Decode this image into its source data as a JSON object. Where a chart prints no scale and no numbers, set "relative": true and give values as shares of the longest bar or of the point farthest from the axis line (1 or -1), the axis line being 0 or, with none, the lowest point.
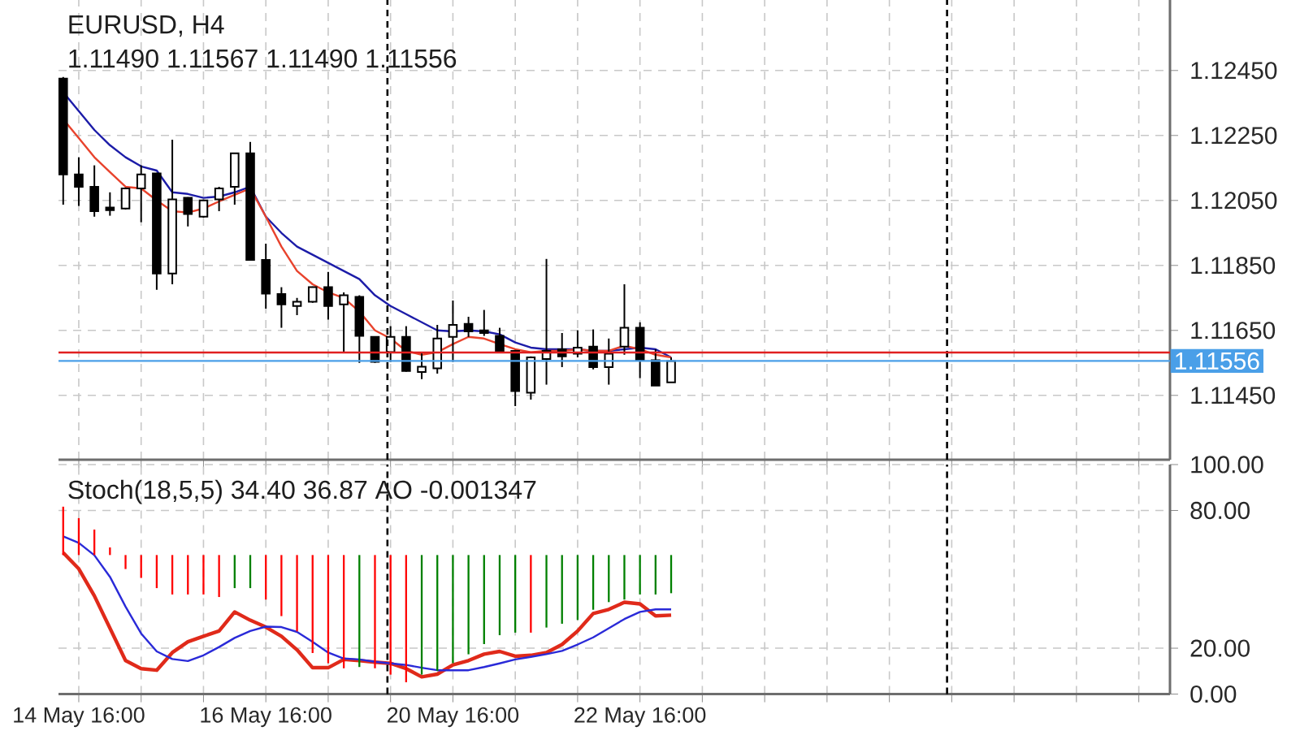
{
  "chart_data": [
    {
      "type": "candlestick",
      "title": "EURUSD, H4",
      "subtitle": "1.11490 1.11567 1.11490 1.11556",
      "categories": [
        null,
        null,
        null,
        null,
        null,
        null,
        null,
        null,
        null,
        null,
        null,
        null,
        null,
        null,
        null,
        null,
        null,
        null,
        null,
        null,
        null,
        null,
        null,
        null,
        null,
        null,
        null,
        null,
        null,
        null,
        null,
        null,
        null,
        null,
        null,
        null,
        null,
        null,
        null,
        null
      ],
      "ylim": [
        1.11252,
        1.12667
      ],
      "yticks": [
        {
          "value": 1.1245,
          "label": "1.12450"
        },
        {
          "value": 1.1225,
          "label": "1.12250"
        },
        {
          "value": 1.1205,
          "label": "1.12050"
        },
        {
          "value": 1.1185,
          "label": "1.11850"
        },
        {
          "value": 1.1165,
          "label": "1.11650"
        },
        {
          "value": 1.1145,
          "label": "1.11450"
        }
      ],
      "tick_labels": "y",
      "grid": true,
      "ohlc": [
        [
          1.12425,
          1.1243,
          1.12037,
          1.1213
        ],
        [
          1.1213,
          1.12183,
          1.12033,
          1.12092
        ],
        [
          1.12092,
          1.12158,
          1.12,
          1.12017
        ],
        [
          1.12028,
          1.12075,
          1.12003,
          1.1202
        ],
        [
          1.12025,
          1.1209,
          1.12022,
          1.12087
        ],
        [
          1.12087,
          1.12158,
          1.11983,
          1.1213
        ],
        [
          1.12133,
          1.12135,
          1.11775,
          1.11825
        ],
        [
          1.11825,
          1.12237,
          1.11792,
          1.12053
        ],
        [
          1.12058,
          1.1206,
          1.1197,
          1.12008
        ],
        [
          1.12,
          1.12053,
          1.11997,
          1.1205
        ],
        [
          1.12053,
          1.12092,
          1.12017,
          1.12087
        ],
        [
          1.12092,
          1.12195,
          1.12037,
          1.12195
        ],
        [
          1.12195,
          1.1223,
          1.11865,
          1.11867
        ],
        [
          1.11867,
          1.11917,
          1.11717,
          1.11763
        ],
        [
          1.11762,
          1.11783,
          1.11658,
          1.1173
        ],
        [
          1.11725,
          1.1175,
          1.11697,
          1.11738
        ],
        [
          1.11738,
          1.11785,
          1.11735,
          1.11783
        ],
        [
          1.11783,
          1.1183,
          1.11683,
          1.11725
        ],
        [
          1.1173,
          1.11767,
          1.11583,
          1.11758
        ],
        [
          1.11753,
          1.11758,
          1.1155,
          1.11633
        ],
        [
          1.1163,
          1.11632,
          1.1155,
          1.11553
        ],
        [
          1.11583,
          1.11663,
          1.11553,
          1.1163
        ],
        [
          1.1163,
          1.11663,
          1.11523,
          1.11525
        ],
        [
          1.11522,
          1.11583,
          1.115,
          1.11538
        ],
        [
          1.11533,
          1.11667,
          1.11517,
          1.11625
        ],
        [
          1.1163,
          1.11742,
          1.11553,
          1.11667
        ],
        [
          1.1167,
          1.11692,
          1.1163,
          1.11647
        ],
        [
          1.1165,
          1.11713,
          1.11633,
          1.11642
        ],
        [
          1.11633,
          1.11658,
          1.11583,
          1.11587
        ],
        [
          1.11587,
          1.1159,
          1.11417,
          1.11463
        ],
        [
          1.11458,
          1.1157,
          1.11437,
          1.11567
        ],
        [
          1.11562,
          1.1187,
          1.11483,
          1.11587
        ],
        [
          1.11592,
          1.11642,
          1.11537,
          1.1157
        ],
        [
          1.11578,
          1.1165,
          1.11567,
          1.11597
        ],
        [
          1.116,
          1.11653,
          1.1153,
          1.11537
        ],
        [
          1.11537,
          1.11625,
          1.11483,
          1.11578
        ],
        [
          1.116,
          1.11792,
          1.11575,
          1.11658
        ],
        [
          1.11658,
          1.11675,
          1.11503,
          1.11558
        ],
        [
          1.11558,
          1.11592,
          1.1148,
          1.1148
        ],
        [
          1.1149,
          1.11567,
          1.1149,
          1.11556
        ]
      ],
      "series": [
        {
          "type": "line",
          "color": "#1c1ca8",
          "values": [
            1.12383,
            1.12325,
            1.12267,
            1.1222,
            1.12183,
            1.12155,
            1.12142,
            1.12075,
            1.1207,
            1.12058,
            1.12062,
            1.12075,
            1.12092,
            1.12,
            1.1195,
            1.11908,
            1.11883,
            1.11858,
            1.11833,
            1.11808,
            1.11758,
            1.11725,
            1.117,
            1.11675,
            1.1165,
            1.11647,
            1.1165,
            1.11647,
            1.11638,
            1.11613,
            1.11597,
            1.11592,
            1.11592,
            1.11592,
            1.11587,
            1.11587,
            1.11592,
            1.11597,
            1.11592,
            1.11567
          ]
        },
        {
          "type": "line",
          "color": "#e8432d",
          "values": [
            1.123,
            1.12242,
            1.12183,
            1.12137,
            1.12092,
            1.12087,
            1.1205,
            1.12017,
            1.12013,
            1.12025,
            1.12047,
            1.12067,
            1.12087,
            1.12,
            1.11908,
            1.11833,
            1.11792,
            1.11767,
            1.1175,
            1.11708,
            1.1165,
            1.11625,
            1.11587,
            1.11575,
            1.11583,
            1.11608,
            1.1163,
            1.11625,
            1.11608,
            1.11592,
            1.11583,
            1.11587,
            1.11587,
            1.11592,
            1.11587,
            1.11587,
            1.11603,
            1.11592,
            1.11575,
            1.11567
          ]
        }
      ],
      "ref_lines": [
        {
          "axis": "y",
          "value": 1.11582,
          "label": null,
          "color": "#e02020",
          "line_style": "solid"
        },
        {
          "axis": "y",
          "value": 1.11556,
          "label": "1.11556",
          "color": "#4a9fe8",
          "line_style": "solid"
        }
      ]
    },
    {
      "type": "line",
      "title": "Stoch(18,5,5) 34.40 36.87 AO -0.001347",
      "categories": [
        null,
        "14 May 16:00",
        null,
        null,
        null,
        null,
        null,
        null,
        null,
        null,
        null,
        null,
        null,
        "16 May 16:00",
        null,
        null,
        null,
        null,
        null,
        null,
        null,
        null,
        null,
        null,
        null,
        "20 May 16:00",
        null,
        null,
        null,
        null,
        null,
        null,
        null,
        null,
        null,
        null,
        null,
        "22 May 16:00",
        null,
        null
      ],
      "ylim": [
        0,
        100
      ],
      "yticks": [
        {
          "value": 100,
          "label": "100.00"
        },
        {
          "value": 80,
          "label": "80.00"
        },
        {
          "value": 20,
          "label": "20.00"
        },
        {
          "value": 0,
          "label": "0.00"
        }
      ],
      "grid": true,
      "series": [
        {
          "color": "#e02a1a",
          "values": [
            61.6,
            54.6,
            42.8,
            28.7,
            14.6,
            11.1,
            10.4,
            18.1,
            22.8,
            25.2,
            27.5,
            35.8,
            32.2,
            29.2,
            25.2,
            19.3,
            11.5,
            11.5,
            15.1,
            14.6,
            13.9,
            13.4,
            11.1,
            7.5,
            8.7,
            12.7,
            14.6,
            17.4,
            18.6,
            16.5,
            16.9,
            18.1,
            21.6,
            27.5,
            35.1,
            36.9,
            40.0,
            39.3,
            34.1,
            34.4
          ]
        },
        {
          "color": "#2a2ad8",
          "values": [
            68.7,
            65.9,
            60.5,
            51.1,
            38.1,
            26.4,
            18.6,
            15.3,
            14.4,
            16.9,
            20.5,
            24.5,
            27.5,
            29.4,
            29.2,
            27.1,
            22.8,
            18.1,
            15.5,
            15.1,
            14.1,
            13.4,
            12.7,
            11.5,
            10.4,
            10.4,
            10.4,
            11.8,
            13.4,
            15.1,
            16.2,
            17.4,
            18.8,
            21.6,
            24.7,
            28.7,
            32.7,
            35.8,
            36.9,
            36.9
          ]
        }
      ]
    },
    {
      "type": "bar",
      "relative": true,
      "tick_labels": false,
      "categories": [
        null,
        null,
        null,
        null,
        null,
        null,
        null,
        null,
        null,
        null,
        null,
        null,
        null,
        null,
        null,
        null,
        null,
        null,
        null,
        null,
        null,
        null,
        null,
        null,
        null,
        null,
        null,
        null,
        null,
        null,
        null,
        null,
        null,
        null,
        null,
        null,
        null,
        null,
        null,
        null
      ],
      "values": [
        0.38,
        0.29,
        0.2,
        0.06,
        -0.11,
        -0.18,
        -0.26,
        -0.31,
        -0.31,
        -0.31,
        -0.33,
        -0.26,
        -0.26,
        -0.35,
        -0.48,
        -0.6,
        -0.77,
        -0.85,
        -0.89,
        -0.88,
        -0.89,
        -0.94,
        -1,
        -0.94,
        -0.91,
        -0.85,
        -0.78,
        -0.7,
        -0.63,
        -0.61,
        -0.61,
        -0.57,
        -0.54,
        -0.51,
        -0.43,
        -0.37,
        -0.35,
        -0.31,
        -0.31,
        -0.3
      ],
      "colors": [
        "#ff0000",
        "#ff0000",
        "#ff0000",
        "#ff0000",
        "#ff0000",
        "#ff0000",
        "#ff0000",
        "#ff0000",
        "#ff0000",
        "#ff0000",
        "#ff0000",
        "#008000",
        "#008000",
        "#ff0000",
        "#ff0000",
        "#ff0000",
        "#ff0000",
        "#ff0000",
        "#ff0000",
        "#008000",
        "#ff0000",
        "#ff0000",
        "#ff0000",
        "#008000",
        "#008000",
        "#008000",
        "#008000",
        "#008000",
        "#008000",
        "#008000",
        "#ff0000",
        "#008000",
        "#008000",
        "#008000",
        "#008000",
        "#008000",
        "#008000",
        "#008000",
        "#008000",
        "#008000"
      ]
    }
  ]
}
